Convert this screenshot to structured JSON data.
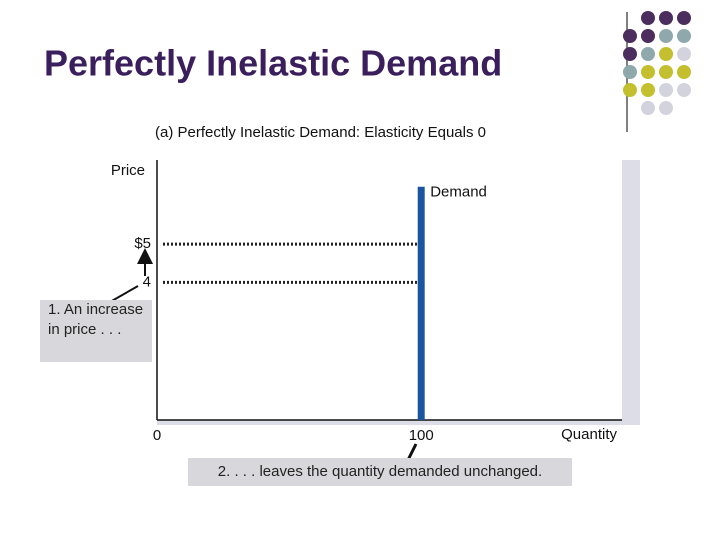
{
  "chart_data": {
    "type": "line",
    "title": "Perfectly Inelastic Demand",
    "subtitle": "(a) Perfectly Inelastic Demand: Elasticity Equals 0",
    "ylabel": "Price",
    "xlabel": "Quantity",
    "x": [
      100,
      100
    ],
    "series": [
      {
        "name": "Demand",
        "color": "#1a56a0",
        "values": [
          0.4,
          6.5
        ]
      }
    ],
    "xlim": [
      0,
      176
    ],
    "xticks": [
      0,
      100
    ],
    "ylim": [
      0.4,
      7.2
    ],
    "yticks": [
      4,
      {
        "value": 5,
        "label": "$5"
      }
    ],
    "annotations": [
      "1. An increase in price . . .",
      "2. . . . leaves the quantity demanded unchanged."
    ]
  }
}
